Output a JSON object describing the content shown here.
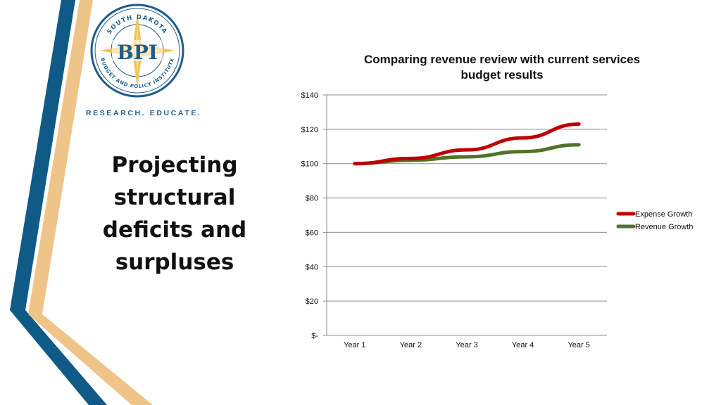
{
  "branding": {
    "logo_ring_text_top": "SOUTH DAKOTA",
    "logo_ring_text_bottom": "BUDGET AND POLICY INSTITUTE",
    "logo_initials": "BPI",
    "tagline": "RESEARCH. EDUCATE.",
    "colors": {
      "blue": "#0f5a86",
      "tan": "#efc489",
      "gold": "#f2c250"
    }
  },
  "slide": {
    "title_lines": [
      "Projecting",
      "structural",
      "deficits and",
      "surpluses"
    ]
  },
  "chart_data": {
    "type": "line",
    "title_lines": [
      "Comparing revenue review with current services",
      "budget results"
    ],
    "categories": [
      "Year 1",
      "Year 2",
      "Year 3",
      "Year 4",
      "Year 5"
    ],
    "series": [
      {
        "name": "Expense Growth",
        "color": "#c00000",
        "values": [
          100,
          103,
          108,
          115,
          123
        ]
      },
      {
        "name": "Revenue Growth",
        "color": "#4f7328",
        "values": [
          100,
          102,
          104,
          107,
          111
        ]
      }
    ],
    "ylim": [
      0,
      140
    ],
    "yticks": [
      0,
      20,
      40,
      60,
      80,
      100,
      120,
      140
    ],
    "ytick_labels": [
      "$-",
      "$20",
      "$40",
      "$60",
      "$80",
      "$100",
      "$120",
      "$140"
    ],
    "grid": true,
    "legend_position": "right"
  }
}
